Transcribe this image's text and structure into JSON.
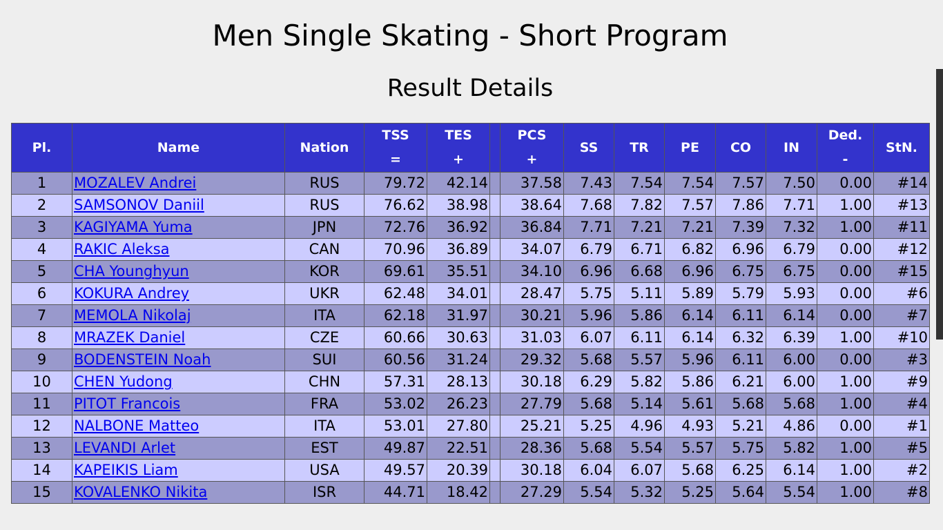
{
  "title": "Men Single Skating - Short Program",
  "subtitle": "Result Details",
  "headers": {
    "pl": "Pl.",
    "name": "Name",
    "nation": "Nation",
    "tss": "TSS",
    "tss_sym": "=",
    "tes": "TES",
    "tes_sym": "+",
    "pcs": "PCS",
    "pcs_sym": "+",
    "ss": "SS",
    "tr": "TR",
    "pe": "PE",
    "co": "CO",
    "in": "IN",
    "ded": "Ded.",
    "ded_sym": "-",
    "stn": "StN."
  },
  "rows": [
    {
      "pl": "1",
      "name": "MOZALEV Andrei",
      "nation": "RUS",
      "tss": "79.72",
      "tes": "42.14",
      "pcs": "37.58",
      "ss": "7.43",
      "tr": "7.54",
      "pe": "7.54",
      "co": "7.57",
      "in": "7.50",
      "ded": "0.00",
      "stn": "#14"
    },
    {
      "pl": "2",
      "name": "SAMSONOV Daniil",
      "nation": "RUS",
      "tss": "76.62",
      "tes": "38.98",
      "pcs": "38.64",
      "ss": "7.68",
      "tr": "7.82",
      "pe": "7.57",
      "co": "7.86",
      "in": "7.71",
      "ded": "1.00",
      "stn": "#13"
    },
    {
      "pl": "3",
      "name": "KAGIYAMA Yuma",
      "nation": "JPN",
      "tss": "72.76",
      "tes": "36.92",
      "pcs": "36.84",
      "ss": "7.71",
      "tr": "7.21",
      "pe": "7.21",
      "co": "7.39",
      "in": "7.32",
      "ded": "1.00",
      "stn": "#11"
    },
    {
      "pl": "4",
      "name": "RAKIC Aleksa",
      "nation": "CAN",
      "tss": "70.96",
      "tes": "36.89",
      "pcs": "34.07",
      "ss": "6.79",
      "tr": "6.71",
      "pe": "6.82",
      "co": "6.96",
      "in": "6.79",
      "ded": "0.00",
      "stn": "#12"
    },
    {
      "pl": "5",
      "name": "CHA Younghyun",
      "nation": "KOR",
      "tss": "69.61",
      "tes": "35.51",
      "pcs": "34.10",
      "ss": "6.96",
      "tr": "6.68",
      "pe": "6.96",
      "co": "6.75",
      "in": "6.75",
      "ded": "0.00",
      "stn": "#15"
    },
    {
      "pl": "6",
      "name": "KOKURA Andrey",
      "nation": "UKR",
      "tss": "62.48",
      "tes": "34.01",
      "pcs": "28.47",
      "ss": "5.75",
      "tr": "5.11",
      "pe": "5.89",
      "co": "5.79",
      "in": "5.93",
      "ded": "0.00",
      "stn": "#6"
    },
    {
      "pl": "7",
      "name": "MEMOLA Nikolaj",
      "nation": "ITA",
      "tss": "62.18",
      "tes": "31.97",
      "pcs": "30.21",
      "ss": "5.96",
      "tr": "5.86",
      "pe": "6.14",
      "co": "6.11",
      "in": "6.14",
      "ded": "0.00",
      "stn": "#7"
    },
    {
      "pl": "8",
      "name": "MRAZEK Daniel",
      "nation": "CZE",
      "tss": "60.66",
      "tes": "30.63",
      "pcs": "31.03",
      "ss": "6.07",
      "tr": "6.11",
      "pe": "6.14",
      "co": "6.32",
      "in": "6.39",
      "ded": "1.00",
      "stn": "#10"
    },
    {
      "pl": "9",
      "name": "BODENSTEIN Noah",
      "nation": "SUI",
      "tss": "60.56",
      "tes": "31.24",
      "pcs": "29.32",
      "ss": "5.68",
      "tr": "5.57",
      "pe": "5.96",
      "co": "6.11",
      "in": "6.00",
      "ded": "0.00",
      "stn": "#3"
    },
    {
      "pl": "10",
      "name": "CHEN Yudong",
      "nation": "CHN",
      "tss": "57.31",
      "tes": "28.13",
      "pcs": "30.18",
      "ss": "6.29",
      "tr": "5.82",
      "pe": "5.86",
      "co": "6.21",
      "in": "6.00",
      "ded": "1.00",
      "stn": "#9"
    },
    {
      "pl": "11",
      "name": "PITOT Francois",
      "nation": "FRA",
      "tss": "53.02",
      "tes": "26.23",
      "pcs": "27.79",
      "ss": "5.68",
      "tr": "5.14",
      "pe": "5.61",
      "co": "5.68",
      "in": "5.68",
      "ded": "1.00",
      "stn": "#4"
    },
    {
      "pl": "12",
      "name": "NALBONE Matteo",
      "nation": "ITA",
      "tss": "53.01",
      "tes": "27.80",
      "pcs": "25.21",
      "ss": "5.25",
      "tr": "4.96",
      "pe": "4.93",
      "co": "5.21",
      "in": "4.86",
      "ded": "0.00",
      "stn": "#1"
    },
    {
      "pl": "13",
      "name": "LEVANDI Arlet",
      "nation": "EST",
      "tss": "49.87",
      "tes": "22.51",
      "pcs": "28.36",
      "ss": "5.68",
      "tr": "5.54",
      "pe": "5.57",
      "co": "5.75",
      "in": "5.82",
      "ded": "1.00",
      "stn": "#5"
    },
    {
      "pl": "14",
      "name": "KAPEIKIS Liam",
      "nation": "USA",
      "tss": "49.57",
      "tes": "20.39",
      "pcs": "30.18",
      "ss": "6.04",
      "tr": "6.07",
      "pe": "5.68",
      "co": "6.25",
      "in": "6.14",
      "ded": "1.00",
      "stn": "#2"
    },
    {
      "pl": "15",
      "name": "KOVALENKO Nikita",
      "nation": "ISR",
      "tss": "44.71",
      "tes": "18.42",
      "pcs": "27.29",
      "ss": "5.54",
      "tr": "5.32",
      "pe": "5.25",
      "co": "5.64",
      "in": "5.54",
      "ded": "1.00",
      "stn": "#8"
    }
  ],
  "colors": {
    "header_bg": "#3333cc",
    "row_odd": "#9999cc",
    "row_even": "#ccccff",
    "link": "#0000ee",
    "page_bg": "#eeeeee"
  }
}
